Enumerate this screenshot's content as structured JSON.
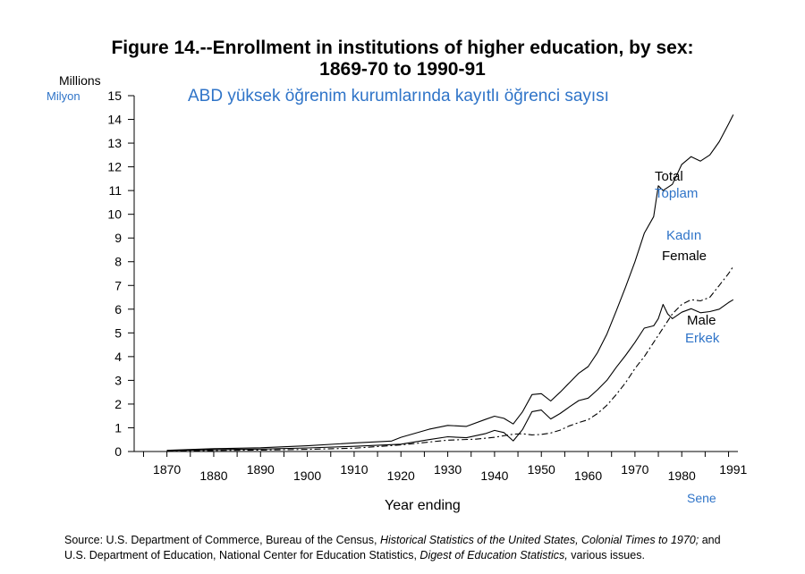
{
  "title_line1": "Figure 14.--Enrollment in institutions of higher education, by sex:",
  "title_line2": "1869-70 to 1990-91",
  "subtitle_tr": "ABD yüksek öğrenim kurumlarında kayıtlı öğrenci sayısı",
  "y_unit_en": "Millions",
  "y_unit_tr": "Milyon",
  "x_label_en": "Year ending",
  "x_label_tr": "Sene",
  "source_line1": {
    "prefix": "Source:  U.S. Department of Commerce, Bureau of the Census, ",
    "italic": "Historical Statistics of the United States, Colonial Times to 1970;",
    "suffix": "  and"
  },
  "source_line2": {
    "prefix": "U.S. Department of Education, National Center for Education Statistics, ",
    "italic": "Digest of Education Statistics,",
    "suffix": "  various issues."
  },
  "colors": {
    "english": "#000000",
    "turkish": "#2f74c8"
  },
  "chart_data": {
    "type": "line",
    "ylim": [
      0,
      15
    ],
    "xlim": [
      1863,
      1992
    ],
    "yticks": [
      0,
      1,
      2,
      3,
      4,
      5,
      6,
      7,
      8,
      9,
      10,
      11,
      12,
      13,
      14,
      15
    ],
    "xticks_upper": [
      "1870",
      "1890",
      "1910",
      "1930",
      "1950",
      "1970",
      "1991"
    ],
    "xticks_lower": [
      "1880",
      "1900",
      "1920",
      "1940",
      "1960",
      "1980"
    ],
    "grid": false,
    "series": [
      {
        "name": "Total",
        "name_tr": "Toplam",
        "style": "solid",
        "points": [
          [
            1870,
            0.05
          ],
          [
            1880,
            0.12
          ],
          [
            1890,
            0.16
          ],
          [
            1900,
            0.24
          ],
          [
            1910,
            0.36
          ],
          [
            1918,
            0.44
          ],
          [
            1920,
            0.6
          ],
          [
            1926,
            0.94
          ],
          [
            1930,
            1.1
          ],
          [
            1934,
            1.06
          ],
          [
            1938,
            1.35
          ],
          [
            1940,
            1.49
          ],
          [
            1942,
            1.4
          ],
          [
            1944,
            1.16
          ],
          [
            1946,
            1.68
          ],
          [
            1948,
            2.4
          ],
          [
            1950,
            2.44
          ],
          [
            1952,
            2.13
          ],
          [
            1954,
            2.5
          ],
          [
            1956,
            2.9
          ],
          [
            1958,
            3.3
          ],
          [
            1960,
            3.58
          ],
          [
            1962,
            4.17
          ],
          [
            1964,
            4.95
          ],
          [
            1966,
            5.93
          ],
          [
            1968,
            6.93
          ],
          [
            1970,
            8.0
          ],
          [
            1972,
            9.2
          ],
          [
            1974,
            9.9
          ],
          [
            1975,
            11.2
          ],
          [
            1976,
            11.0
          ],
          [
            1978,
            11.26
          ],
          [
            1980,
            12.1
          ],
          [
            1982,
            12.43
          ],
          [
            1984,
            12.24
          ],
          [
            1986,
            12.5
          ],
          [
            1988,
            13.06
          ],
          [
            1990,
            13.8
          ],
          [
            1991,
            14.2
          ]
        ]
      },
      {
        "name": "Female",
        "name_tr": "Kadın",
        "style": "dashed",
        "points": [
          [
            1870,
            0.01
          ],
          [
            1880,
            0.04
          ],
          [
            1890,
            0.06
          ],
          [
            1900,
            0.09
          ],
          [
            1910,
            0.14
          ],
          [
            1920,
            0.28
          ],
          [
            1930,
            0.48
          ],
          [
            1936,
            0.52
          ],
          [
            1940,
            0.6
          ],
          [
            1944,
            0.73
          ],
          [
            1946,
            0.75
          ],
          [
            1948,
            0.7
          ],
          [
            1950,
            0.72
          ],
          [
            1952,
            0.78
          ],
          [
            1954,
            0.9
          ],
          [
            1956,
            1.08
          ],
          [
            1958,
            1.22
          ],
          [
            1960,
            1.34
          ],
          [
            1962,
            1.6
          ],
          [
            1964,
            1.95
          ],
          [
            1966,
            2.4
          ],
          [
            1968,
            2.9
          ],
          [
            1970,
            3.5
          ],
          [
            1972,
            4.0
          ],
          [
            1974,
            4.6
          ],
          [
            1976,
            5.2
          ],
          [
            1978,
            5.8
          ],
          [
            1980,
            6.2
          ],
          [
            1982,
            6.4
          ],
          [
            1984,
            6.35
          ],
          [
            1986,
            6.5
          ],
          [
            1988,
            7.0
          ],
          [
            1990,
            7.5
          ],
          [
            1991,
            7.8
          ]
        ]
      },
      {
        "name": "Male",
        "name_tr": "Erkek",
        "style": "solid",
        "points": [
          [
            1870,
            0.04
          ],
          [
            1880,
            0.08
          ],
          [
            1890,
            0.1
          ],
          [
            1900,
            0.15
          ],
          [
            1910,
            0.22
          ],
          [
            1920,
            0.31
          ],
          [
            1926,
            0.5
          ],
          [
            1930,
            0.62
          ],
          [
            1934,
            0.58
          ],
          [
            1938,
            0.75
          ],
          [
            1940,
            0.89
          ],
          [
            1942,
            0.8
          ],
          [
            1944,
            0.45
          ],
          [
            1946,
            0.93
          ],
          [
            1948,
            1.68
          ],
          [
            1950,
            1.75
          ],
          [
            1952,
            1.37
          ],
          [
            1954,
            1.6
          ],
          [
            1956,
            1.88
          ],
          [
            1958,
            2.15
          ],
          [
            1960,
            2.25
          ],
          [
            1962,
            2.6
          ],
          [
            1964,
            3.0
          ],
          [
            1966,
            3.55
          ],
          [
            1968,
            4.05
          ],
          [
            1970,
            4.6
          ],
          [
            1972,
            5.2
          ],
          [
            1974,
            5.3
          ],
          [
            1975,
            5.6
          ],
          [
            1976,
            6.2
          ],
          [
            1977,
            5.8
          ],
          [
            1978,
            5.6
          ],
          [
            1980,
            5.87
          ],
          [
            1982,
            6.02
          ],
          [
            1984,
            5.85
          ],
          [
            1986,
            5.9
          ],
          [
            1988,
            6.0
          ],
          [
            1990,
            6.28
          ],
          [
            1991,
            6.4
          ]
        ]
      }
    ]
  }
}
